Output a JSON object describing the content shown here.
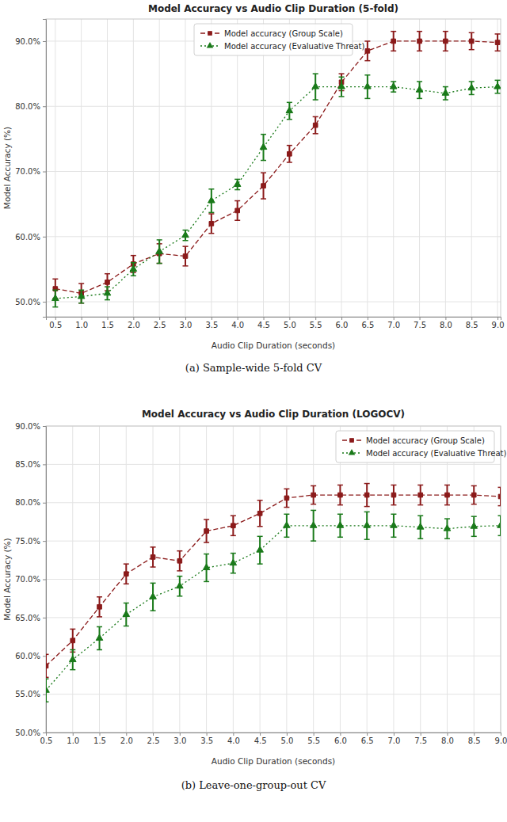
{
  "chart_data": [
    {
      "type": "line",
      "title": "Model Accuracy vs Audio Clip Duration (5-fold)",
      "x_label": "Audio Clip Duration (seconds)",
      "y_label": "Model Accuracy (%)",
      "caption": "(a) Sample-wide 5-fold CV",
      "x": [
        0.5,
        1.0,
        1.5,
        2.0,
        2.5,
        3.0,
        3.5,
        4.0,
        4.5,
        5.0,
        5.5,
        6.0,
        6.5,
        7.0,
        7.5,
        8.0,
        8.5,
        9.0
      ],
      "xlim": [
        0.32,
        9.06
      ],
      "xticks": [
        0.5,
        {
          "value": 1,
          "label": "1.0"
        },
        1.5,
        {
          "value": 2,
          "label": "2.0"
        },
        2.5,
        {
          "value": 3,
          "label": "3.0"
        },
        3.5,
        {
          "value": 4,
          "label": "4.0"
        },
        4.5,
        {
          "value": 5,
          "label": "5.0"
        },
        5.5,
        {
          "value": 6,
          "label": "6.0"
        },
        6.5,
        {
          "value": 7,
          "label": "7.0"
        },
        7.5,
        {
          "value": 8,
          "label": "8.0"
        },
        8.5,
        {
          "value": 9,
          "label": "9.0"
        }
      ],
      "ylim": [
        47.7,
        93.4
      ],
      "yticks": [
        {
          "value": 50,
          "label": "50.0%"
        },
        {
          "value": 60,
          "label": "60.0%"
        },
        {
          "value": 70,
          "label": "70.0%"
        },
        {
          "value": 80,
          "label": "80.0%"
        },
        {
          "value": 90,
          "label": "90.0%"
        }
      ],
      "grid": true,
      "legend": "upper center",
      "series": [
        {
          "name": "Model accuracy (Group Scale)",
          "color": "#8b1a1a",
          "marker": "square",
          "line_style": "dashed",
          "values": [
            52.0,
            51.3,
            53.0,
            55.8,
            57.4,
            57.0,
            62.0,
            64.0,
            67.8,
            72.7,
            77.1,
            83.7,
            88.5,
            90.0,
            90.0,
            90.0,
            90.0,
            89.8
          ],
          "errors": [
            1.5,
            1.5,
            1.3,
            1.3,
            1.5,
            1.5,
            1.5,
            1.5,
            2.0,
            1.3,
            1.3,
            1.3,
            1.5,
            1.5,
            1.5,
            1.5,
            1.3,
            1.3
          ]
        },
        {
          "name": "Model accuracy (Evaluative Threat)",
          "color": "#1a7a1a",
          "marker": "triangle",
          "line_style": "dotted",
          "values": [
            50.5,
            50.8,
            51.3,
            55.0,
            57.7,
            60.2,
            65.5,
            68.0,
            73.7,
            79.3,
            83.0,
            83.0,
            83.0,
            83.0,
            82.5,
            82.0,
            82.8,
            83.0
          ],
          "errors": [
            1.3,
            1.0,
            1.0,
            1.0,
            1.8,
            0.8,
            1.8,
            0.8,
            2.0,
            1.3,
            2.0,
            1.5,
            1.8,
            0.8,
            1.3,
            1.0,
            1.0,
            1.0
          ]
        }
      ]
    },
    {
      "type": "line",
      "title": "Model Accuracy vs Audio Clip Duration (LOGOCV)",
      "x_label": "Audio Clip Duration (seconds)",
      "y_label": "Model Accuracy (%)",
      "caption": "(b) Leave-one-group-out CV",
      "x": [
        0.5,
        1.0,
        1.5,
        2.0,
        2.5,
        3.0,
        3.5,
        4.0,
        4.5,
        5.0,
        5.5,
        6.0,
        6.5,
        7.0,
        7.5,
        8.0,
        8.5,
        9.0
      ],
      "xlim": [
        0.5,
        9.0
      ],
      "xticks": [
        0.5,
        {
          "value": 1,
          "label": "1.0"
        },
        1.5,
        {
          "value": 2,
          "label": "2.0"
        },
        2.5,
        {
          "value": 3,
          "label": "3.0"
        },
        3.5,
        {
          "value": 4,
          "label": "4.0"
        },
        4.5,
        {
          "value": 5,
          "label": "5.0"
        },
        5.5,
        {
          "value": 6,
          "label": "6.0"
        },
        6.5,
        {
          "value": 7,
          "label": "7.0"
        },
        7.5,
        {
          "value": 8,
          "label": "8.0"
        },
        8.5,
        {
          "value": 9,
          "label": "9.0"
        }
      ],
      "ylim": [
        50,
        90
      ],
      "yticks": [
        {
          "value": 50,
          "label": "50.0%"
        },
        {
          "value": 55,
          "label": "55.0%"
        },
        {
          "value": 60,
          "label": "60.0%"
        },
        {
          "value": 65,
          "label": "65.0%"
        },
        {
          "value": 70,
          "label": "70.0%"
        },
        {
          "value": 75,
          "label": "75.0%"
        },
        {
          "value": 80,
          "label": "80.0%"
        },
        {
          "value": 85,
          "label": "85.0%"
        },
        {
          "value": 90,
          "label": "90.0%"
        }
      ],
      "grid": true,
      "legend": "upper right",
      "series": [
        {
          "name": "Model accuracy (Group Scale)",
          "color": "#8b1a1a",
          "marker": "square",
          "line_style": "dashed",
          "values": [
            58.7,
            62.0,
            66.4,
            70.7,
            72.9,
            72.4,
            76.3,
            77.0,
            78.6,
            80.6,
            81.0,
            81.0,
            81.0,
            81.0,
            81.0,
            81.0,
            81.0,
            80.8
          ],
          "errors": [
            1.5,
            1.5,
            1.3,
            1.3,
            1.3,
            1.3,
            1.5,
            1.3,
            1.7,
            1.2,
            1.2,
            1.3,
            1.5,
            1.3,
            1.3,
            1.3,
            1.2,
            1.2
          ]
        },
        {
          "name": "Model accuracy (Evaluative Threat)",
          "color": "#1a7a1a",
          "marker": "triangle",
          "line_style": "dotted",
          "values": [
            55.5,
            59.5,
            62.3,
            65.4,
            67.7,
            69.1,
            71.5,
            72.1,
            73.8,
            77.0,
            77.0,
            77.0,
            77.0,
            77.0,
            76.8,
            76.6,
            76.9,
            77.0
          ],
          "errors": [
            1.5,
            1.3,
            1.5,
            1.5,
            1.8,
            1.3,
            1.8,
            1.3,
            1.8,
            1.5,
            2.0,
            1.5,
            1.8,
            1.5,
            1.5,
            1.3,
            1.3,
            1.3
          ]
        }
      ]
    }
  ]
}
